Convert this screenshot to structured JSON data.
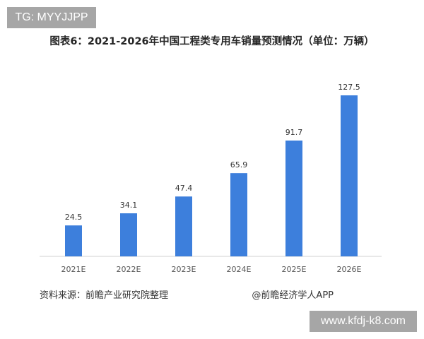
{
  "tg_label": "TG: MYYJJPP",
  "footer": {
    "source": "资料来源：前瞻产业研究院整理",
    "brand": "@前瞻经济学人APP",
    "url": "www.kfdj-k8.com"
  },
  "chart_data": {
    "type": "bar",
    "title": "图表6：2021-2026年中国工程类专用车销量预测情况（单位：万辆）",
    "categories": [
      "2021E",
      "2022E",
      "2023E",
      "2024E",
      "2025E",
      "2026E"
    ],
    "values": [
      24.5,
      34.1,
      47.4,
      65.9,
      91.7,
      127.5
    ],
    "value_labels": [
      "24.5",
      "34.1",
      "47.4",
      "65.9",
      "91.7",
      "127.5"
    ],
    "xlabel": "",
    "ylabel": "",
    "ylim": [
      0,
      127.5
    ],
    "grid": false,
    "bar_color": "#3d7fdc"
  }
}
